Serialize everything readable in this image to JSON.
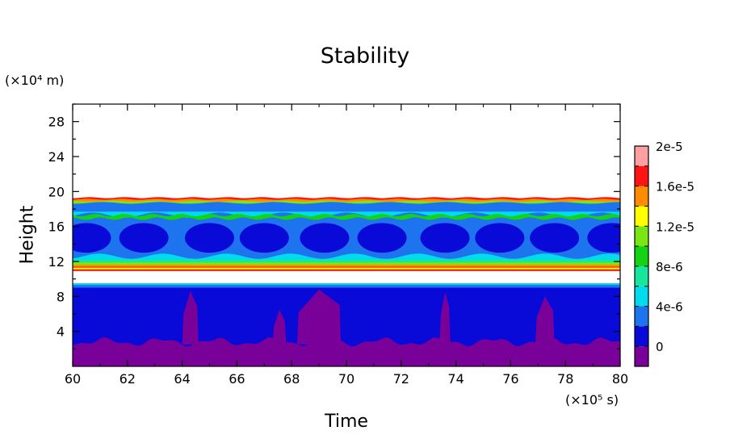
{
  "chart_data": {
    "type": "heatmap",
    "title": "Stability",
    "xlabel": "Time",
    "ylabel": "Height",
    "x_unit": "(×10⁵ s)",
    "y_unit": "(×10⁴ m)",
    "xlim": [
      60,
      80
    ],
    "ylim": [
      0,
      30
    ],
    "x_ticks": [
      60,
      62,
      64,
      66,
      68,
      70,
      72,
      74,
      76,
      78,
      80
    ],
    "y_ticks": [
      4,
      8,
      12,
      16,
      20,
      24,
      28
    ],
    "colorbar": {
      "labels": [
        "2e-5",
        "1.6e-5",
        "1.2e-5",
        "8e-6",
        "4e-6",
        "0"
      ],
      "levels": [
        -2e-06,
        0,
        2e-06,
        4e-06,
        6e-06,
        8e-06,
        1e-05,
        1.2e-05,
        1.4e-05,
        1.6e-05,
        1.8e-05,
        2e-05
      ],
      "colors": [
        "#7a009a",
        "#0a0ad8",
        "#1e73ee",
        "#00dcee",
        "#18e69c",
        "#14d214",
        "#7ae614",
        "#ffff00",
        "#ff8c00",
        "#ff1414",
        "#ffa0a0"
      ]
    },
    "bands": [
      {
        "height_range": [
          0,
          3
        ],
        "value": "< 0"
      },
      {
        "height_range": [
          3,
          9.5
        ],
        "value": "0 to 2e-6"
      },
      {
        "height_range": [
          9.5,
          11
        ],
        "value": "> 2e-5 (blank)"
      },
      {
        "height_range": [
          11,
          19.3
        ],
        "value": "0 to 1.6e-5"
      },
      {
        "height_range": [
          19.3,
          30
        ],
        "value": "> 2e-5 (blank)"
      }
    ]
  }
}
